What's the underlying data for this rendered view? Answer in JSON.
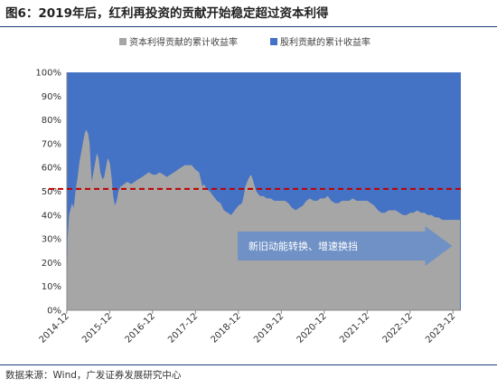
{
  "title": "图6：2019年后，红利再投资的贡献开始稳定超过资本利得",
  "source": "数据来源：Wind，广发证券发展研究中心",
  "colors": {
    "capital": "#a6a6a6",
    "dividend": "#4472c4",
    "reference": "#c00000",
    "arrow": "#6b8fc9"
  },
  "chart_data": {
    "type": "area",
    "stacked": true,
    "legend_position": "top",
    "series": [
      {
        "name": "资本利得贡献的累计收益率",
        "color": "#a6a6a6"
      },
      {
        "name": "股利贡献的累计收益率",
        "color": "#4472c4"
      }
    ],
    "y_ticks": [
      "0%",
      "10%",
      "20%",
      "30%",
      "40%",
      "50%",
      "60%",
      "70%",
      "80%",
      "90%",
      "100%"
    ],
    "ylim": [
      0,
      100
    ],
    "x_ticks": [
      "2014-12",
      "2015-12",
      "2016-12",
      "2017-12",
      "2018-12",
      "2019-12",
      "2020-12",
      "2021-12",
      "2022-12",
      "2023-12"
    ],
    "xlim": [
      2014.92,
      2024.1
    ],
    "capital_share": [
      [
        2014.92,
        0
      ],
      [
        2014.94,
        30
      ],
      [
        2014.97,
        40
      ],
      [
        2015.0,
        42
      ],
      [
        2015.04,
        45
      ],
      [
        2015.08,
        43
      ],
      [
        2015.12,
        50
      ],
      [
        2015.17,
        56
      ],
      [
        2015.21,
        62
      ],
      [
        2015.25,
        66
      ],
      [
        2015.29,
        70
      ],
      [
        2015.33,
        74
      ],
      [
        2015.37,
        76
      ],
      [
        2015.42,
        74
      ],
      [
        2015.45,
        70
      ],
      [
        2015.48,
        60
      ],
      [
        2015.5,
        54
      ],
      [
        2015.54,
        58
      ],
      [
        2015.58,
        62
      ],
      [
        2015.62,
        66
      ],
      [
        2015.66,
        64
      ],
      [
        2015.7,
        58
      ],
      [
        2015.75,
        55
      ],
      [
        2015.79,
        56
      ],
      [
        2015.83,
        60
      ],
      [
        2015.87,
        64
      ],
      [
        2015.92,
        62
      ],
      [
        2015.96,
        56
      ],
      [
        2016.0,
        48
      ],
      [
        2016.04,
        44
      ],
      [
        2016.08,
        46
      ],
      [
        2016.12,
        50
      ],
      [
        2016.17,
        52
      ],
      [
        2016.25,
        53
      ],
      [
        2016.33,
        54
      ],
      [
        2016.42,
        53
      ],
      [
        2016.5,
        54
      ],
      [
        2016.58,
        55
      ],
      [
        2016.67,
        56
      ],
      [
        2016.75,
        57
      ],
      [
        2016.83,
        58
      ],
      [
        2016.92,
        57
      ],
      [
        2017.0,
        57
      ],
      [
        2017.08,
        58
      ],
      [
        2017.17,
        57
      ],
      [
        2017.25,
        56
      ],
      [
        2017.33,
        57
      ],
      [
        2017.42,
        58
      ],
      [
        2017.5,
        59
      ],
      [
        2017.58,
        60
      ],
      [
        2017.67,
        61
      ],
      [
        2017.75,
        61
      ],
      [
        2017.83,
        61
      ],
      [
        2017.92,
        59
      ],
      [
        2018.0,
        58
      ],
      [
        2018.04,
        55
      ],
      [
        2018.08,
        52
      ],
      [
        2018.12,
        53
      ],
      [
        2018.17,
        51
      ],
      [
        2018.25,
        50
      ],
      [
        2018.33,
        48
      ],
      [
        2018.42,
        46
      ],
      [
        2018.5,
        45
      ],
      [
        2018.58,
        42
      ],
      [
        2018.67,
        41
      ],
      [
        2018.75,
        40
      ],
      [
        2018.83,
        42
      ],
      [
        2018.92,
        44
      ],
      [
        2019.0,
        45
      ],
      [
        2019.04,
        48
      ],
      [
        2019.08,
        52
      ],
      [
        2019.12,
        54
      ],
      [
        2019.17,
        56
      ],
      [
        2019.21,
        57
      ],
      [
        2019.25,
        55
      ],
      [
        2019.33,
        50
      ],
      [
        2019.42,
        48
      ],
      [
        2019.5,
        48
      ],
      [
        2019.58,
        47
      ],
      [
        2019.67,
        47
      ],
      [
        2019.75,
        46
      ],
      [
        2019.83,
        46
      ],
      [
        2019.92,
        46
      ],
      [
        2020.0,
        46
      ],
      [
        2020.08,
        45
      ],
      [
        2020.17,
        43
      ],
      [
        2020.25,
        42
      ],
      [
        2020.33,
        43
      ],
      [
        2020.42,
        44
      ],
      [
        2020.5,
        46
      ],
      [
        2020.58,
        47
      ],
      [
        2020.67,
        46
      ],
      [
        2020.75,
        46
      ],
      [
        2020.83,
        47
      ],
      [
        2020.92,
        47
      ],
      [
        2021.0,
        48
      ],
      [
        2021.08,
        46
      ],
      [
        2021.17,
        45
      ],
      [
        2021.25,
        45
      ],
      [
        2021.33,
        46
      ],
      [
        2021.42,
        46
      ],
      [
        2021.5,
        46
      ],
      [
        2021.58,
        47
      ],
      [
        2021.67,
        46
      ],
      [
        2021.75,
        46
      ],
      [
        2021.83,
        46
      ],
      [
        2021.92,
        46
      ],
      [
        2022.0,
        45
      ],
      [
        2022.08,
        44
      ],
      [
        2022.17,
        42
      ],
      [
        2022.25,
        41
      ],
      [
        2022.33,
        41
      ],
      [
        2022.42,
        42
      ],
      [
        2022.5,
        42
      ],
      [
        2022.58,
        42
      ],
      [
        2022.67,
        41
      ],
      [
        2022.75,
        40
      ],
      [
        2022.83,
        40
      ],
      [
        2022.92,
        41
      ],
      [
        2023.0,
        41
      ],
      [
        2023.08,
        42
      ],
      [
        2023.17,
        41
      ],
      [
        2023.25,
        41
      ],
      [
        2023.33,
        40
      ],
      [
        2023.42,
        40
      ],
      [
        2023.5,
        39
      ],
      [
        2023.58,
        39
      ],
      [
        2023.67,
        38
      ],
      [
        2023.75,
        38
      ],
      [
        2023.83,
        38
      ],
      [
        2023.92,
        38
      ],
      [
        2024.0,
        38
      ],
      [
        2024.08,
        38
      ]
    ],
    "reference_line": {
      "y": 51,
      "style": "dashed"
    },
    "annotation": {
      "text": "新旧动能转换、增速换挡",
      "x_start": 2018.9,
      "x_end": 2023.9,
      "y": 27
    }
  }
}
